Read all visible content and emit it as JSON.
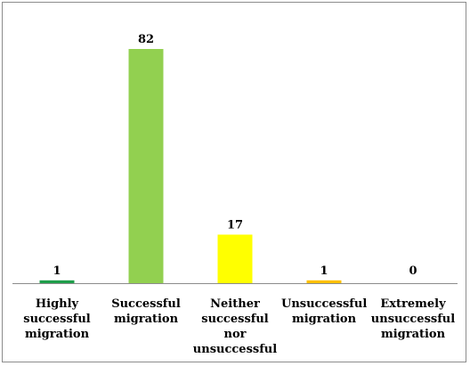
{
  "chart_data": {
    "type": "bar",
    "categories": [
      "Highly\nsuccessful\nmigration",
      "Successful\nmigration",
      "Neither\nsuccessful nor\nunsuccessful",
      "Unsuccessful\nmigration",
      "Extremely\nunsuccessful\nmigration"
    ],
    "values": [
      1,
      82,
      17,
      1,
      0
    ],
    "colors": [
      "#1e9e4a",
      "#92d050",
      "#ffff00",
      "#ffc000",
      "#7f7f7f"
    ],
    "title": "",
    "xlabel": "",
    "ylabel": "",
    "ylim": [
      0,
      82
    ],
    "grid": false,
    "legend": "none",
    "data_labels": true
  }
}
